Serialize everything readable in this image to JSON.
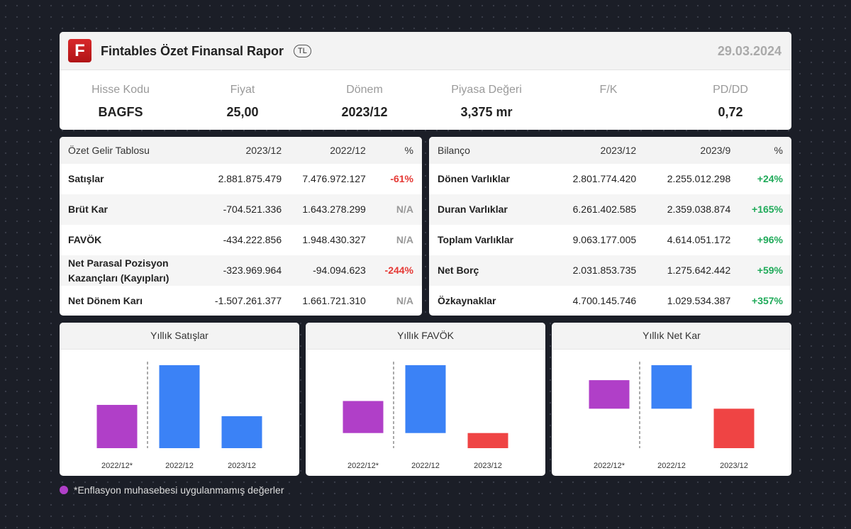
{
  "header": {
    "logo": "F",
    "title": "Fintables Özet Finansal Rapor",
    "currency": "TL",
    "date": "29.03.2024"
  },
  "summary": [
    {
      "label": "Hisse Kodu",
      "value": "BAGFS"
    },
    {
      "label": "Fiyat",
      "value": "25,00"
    },
    {
      "label": "Dönem",
      "value": "2023/12"
    },
    {
      "label": "Piyasa Değeri",
      "value": "3,375 mr"
    },
    {
      "label": "F/K"
    },
    {
      "label": "PD/DD",
      "value": "0,72"
    }
  ],
  "income_table": {
    "headers": [
      "Özet Gelir Tablosu",
      "2023/12",
      "2022/12",
      "%"
    ],
    "rows": [
      [
        "Satışlar",
        "2.881.875.479",
        "7.476.972.127",
        "-61%"
      ],
      [
        "Brüt Kar",
        "-704.521.336",
        "1.643.278.299",
        "N/A"
      ],
      [
        "FAVÖK",
        "-434.222.856",
        "1.948.430.327",
        "N/A"
      ],
      [
        "Net Parasal Pozisyon Kazançları (Kayıpları)",
        "-323.969.964",
        "-94.094.623",
        "-244%"
      ],
      [
        "Net Dönem Karı",
        "-1.507.261.377",
        "1.661.721.310",
        "N/A"
      ]
    ]
  },
  "balance_table": {
    "headers": [
      "Bilanço",
      "2023/12",
      "2023/9",
      "%"
    ],
    "rows": [
      [
        "Dönen Varlıklar",
        "2.801.774.420",
        "2.255.012.298",
        "+24%"
      ],
      [
        "Duran Varlıklar",
        "6.261.402.585",
        "2.359.038.874",
        "+165%"
      ],
      [
        "Toplam Varlıklar",
        "9.063.177.005",
        "4.614.051.172",
        "+96%"
      ],
      [
        "Net Borç",
        "2.031.853.735",
        "1.275.642.442",
        "+59%"
      ],
      [
        "Özkaynaklar",
        "4.700.145.746",
        "1.029.534.387",
        "+357%"
      ]
    ]
  },
  "charts": [
    {
      "type": "bar",
      "title": "Yıllık Satışlar",
      "categories": [
        "2022/12*",
        "2022/12",
        "2023/12"
      ],
      "values": [
        3900000000,
        7476972127,
        2881875479
      ],
      "colors": [
        "#b03fc8",
        "#3b82f6",
        "#3b82f6"
      ]
    },
    {
      "type": "bar",
      "title": "Yıllık FAVÖK",
      "categories": [
        "2022/12*",
        "2022/12",
        "2023/12"
      ],
      "values": [
        920000000,
        1948430327,
        -434222856
      ],
      "colors": [
        "#b03fc8",
        "#3b82f6",
        "#ef4444"
      ]
    },
    {
      "type": "bar",
      "title": "Yıllık Net Kar",
      "categories": [
        "2022/12*",
        "2022/12",
        "2023/12"
      ],
      "values": [
        1090000000,
        1661721310,
        -1507261377
      ],
      "colors": [
        "#b03fc8",
        "#3b82f6",
        "#ef4444"
      ]
    }
  ],
  "footnote": {
    "color": "#b03fc8",
    "text": "*Enflasyon muhasebesi uygulanmamış değerler"
  }
}
